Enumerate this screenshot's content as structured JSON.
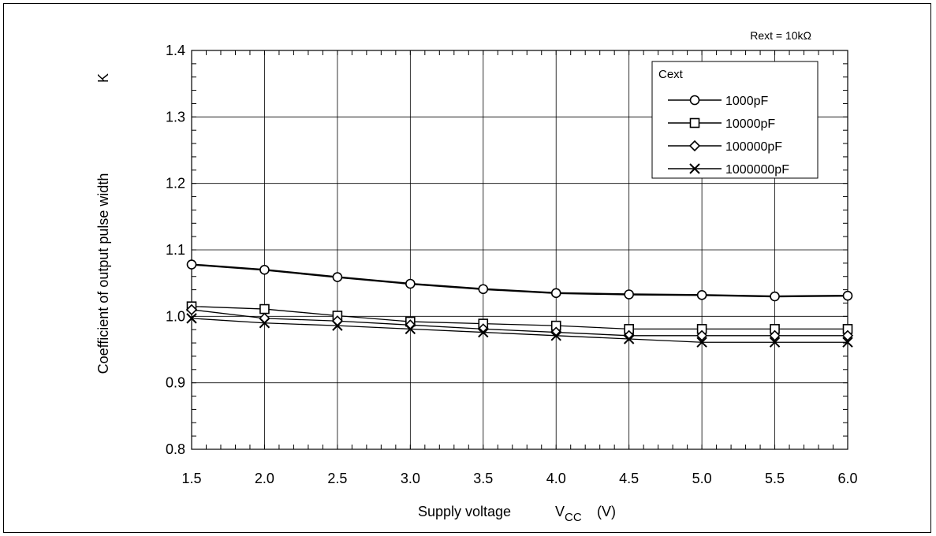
{
  "chart_data": {
    "type": "line",
    "annotation": "Rext = 10kΩ",
    "xlabel": {
      "main": "Supply voltage",
      "symbol": "V",
      "subscript": "CC",
      "unit": "(V)"
    },
    "ylabel": {
      "main": "Coefficient of output pulse width",
      "symbol": "K"
    },
    "xlim": [
      1.5,
      6.0
    ],
    "ylim": [
      0.8,
      1.4
    ],
    "x_ticks": [
      "1.5",
      "2.0",
      "2.5",
      "3.0",
      "3.5",
      "4.0",
      "4.5",
      "5.0",
      "5.5",
      "6.0"
    ],
    "y_ticks": [
      "0.8",
      "0.9",
      "1.0",
      "1.1",
      "1.2",
      "1.3",
      "1.4"
    ],
    "grid": true,
    "legend": {
      "title": "Cext",
      "placement": "top-right"
    },
    "x": [
      1.5,
      2.0,
      2.5,
      3.0,
      3.5,
      4.0,
      4.5,
      5.0,
      5.5,
      6.0
    ],
    "series": [
      {
        "name": "1000pF",
        "marker": "circle",
        "values": [
          1.078,
          1.07,
          1.059,
          1.049,
          1.041,
          1.035,
          1.033,
          1.032,
          1.03,
          1.031
        ]
      },
      {
        "name": "10000pF",
        "marker": "square",
        "values": [
          1.015,
          1.011,
          1.001,
          0.992,
          0.989,
          0.986,
          0.981,
          0.981,
          0.981,
          0.981
        ]
      },
      {
        "name": "100000pF",
        "marker": "diamond",
        "values": [
          1.01,
          0.997,
          0.993,
          0.987,
          0.981,
          0.976,
          0.971,
          0.971,
          0.971,
          0.971
        ]
      },
      {
        "name": "1000000pF",
        "marker": "x",
        "values": [
          0.997,
          0.99,
          0.986,
          0.981,
          0.976,
          0.971,
          0.966,
          0.961,
          0.961,
          0.961
        ]
      }
    ]
  }
}
